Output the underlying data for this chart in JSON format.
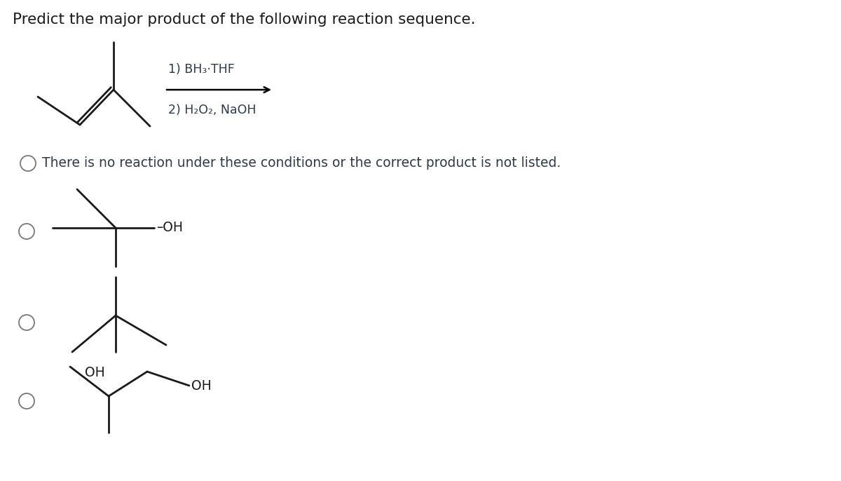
{
  "title": "Predict the major product of the following reaction sequence.",
  "title_color": "#1a1a1a",
  "title_fontsize": 15.5,
  "bg_color": "#ffffff",
  "text_color": "#2d3a4a",
  "reaction_label1": "1) BH₃·THF",
  "reaction_label2": "2) H₂O₂, NaOH",
  "option1_text": "There is no reaction under these conditions or the correct product is not listed.",
  "radio_color": "#777777",
  "structure_color": "#1a1a1a",
  "lw": 2.0,
  "oh_fontsize": 13.5
}
